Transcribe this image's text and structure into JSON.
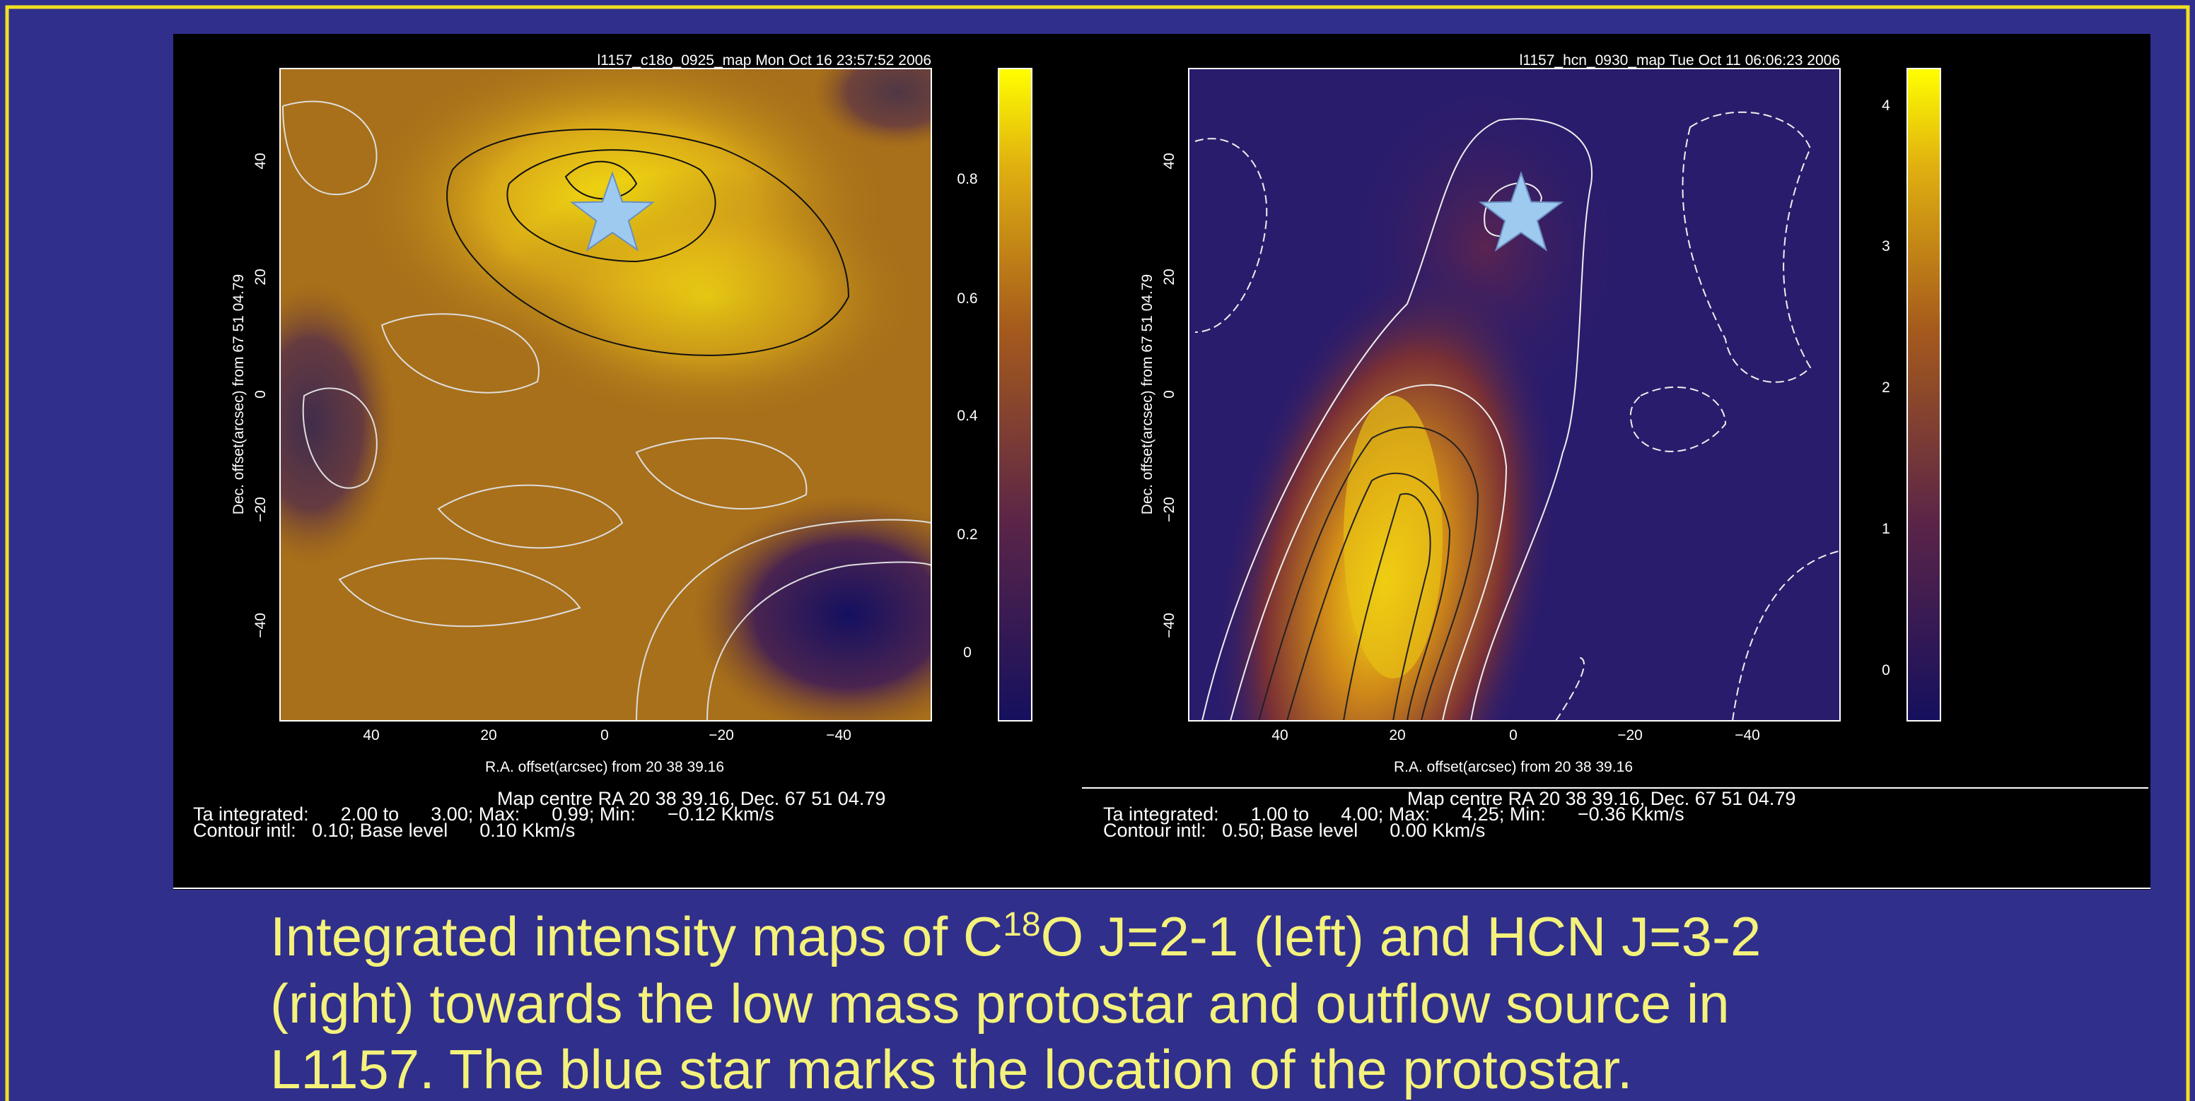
{
  "panels": [
    {
      "header": "l1157_c18o_0925_map Mon Oct 16 23:57:52 2006",
      "y_label": "Dec. offset(arcsec) from  67 51 04.79",
      "x_label": "R.A. offset(arcsec) from 20 38 39.16",
      "x_ticks": [
        "40",
        "20",
        "0",
        "−20",
        "−40"
      ],
      "y_ticks": [
        "40",
        "20",
        "0",
        "−20",
        "−40"
      ],
      "colorbar_ticks": [
        "0.8",
        "0.6",
        "0.4",
        "0.2",
        "0"
      ],
      "map_centre": "Map centre RA 20 38 39.16, Dec. 67 51 04.79",
      "integrated": "Ta integrated:      2.00 to      3.00; Max:      0.99; Min:      −0.12 Kkm/s",
      "contour": "Contour intl:   0.10; Base level      0.10 Kkm/s"
    },
    {
      "header": "l1157_hcn_0930_map Tue Oct 11 06:06:23 2006",
      "y_label": "Dec. offset(arcsec) from  67 51 04.79",
      "x_label": "R.A. offset(arcsec) from 20 38 39.16",
      "x_ticks": [
        "40",
        "20",
        "0",
        "−20",
        "−40"
      ],
      "y_ticks": [
        "40",
        "20",
        "0",
        "−20",
        "−40"
      ],
      "colorbar_ticks": [
        "4",
        "3",
        "2",
        "1",
        "0"
      ],
      "map_centre": "Map centre RA 20 38 39.16, Dec. 67 51 04.79",
      "integrated": "Ta integrated:      1.00 to      4.00; Max:      4.25; Min:      −0.36 Kkm/s",
      "contour": "Contour intl:   0.50; Base level      0.00 Kkm/s"
    }
  ],
  "caption": {
    "line1_before": "Integrated intensity maps of C",
    "line1_sup": "18",
    "line1_after": "O J=2-1 (left) and HCN J=3-2",
    "line2": "(right) towards the low mass protostar and outflow source in",
    "line3": "L1157.  The blue star marks the location of the protostar."
  }
}
